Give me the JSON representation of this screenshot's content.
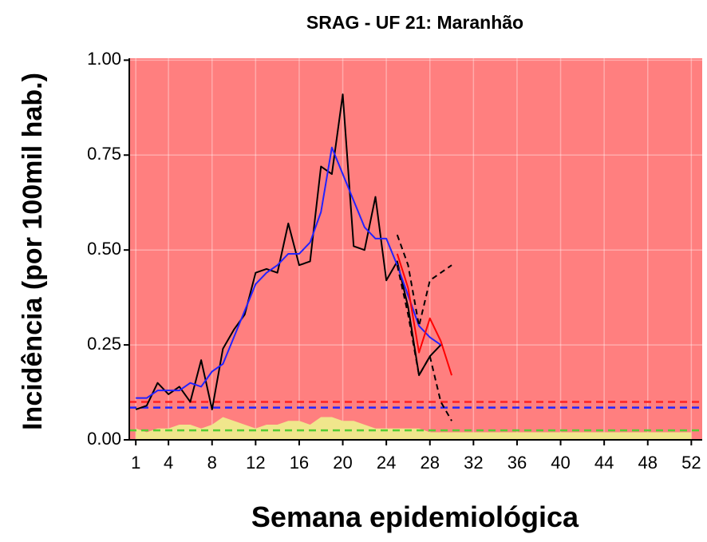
{
  "chart_data": {
    "type": "line",
    "title": "SRAG - UF 21: Maranhão",
    "x_label": "Semana epidemiológica",
    "y_label": "Incidência (por 100mil hab.)",
    "background": "#ff7f7f",
    "grid": true,
    "xlim": [
      0.4,
      53
    ],
    "ylim": [
      0,
      1.005
    ],
    "xticks": [
      1,
      4,
      8,
      12,
      16,
      20,
      24,
      28,
      32,
      36,
      40,
      44,
      48,
      52
    ],
    "yticks": [
      {
        "value": 0,
        "label": "0.00"
      },
      {
        "value": 0.25,
        "label": "0.25"
      },
      {
        "value": 0.5,
        "label": "0.50"
      },
      {
        "value": 0.75,
        "label": "0.75"
      },
      {
        "value": 1,
        "label": "1.00"
      }
    ],
    "areas": [
      {
        "color": "#f0e68c",
        "x": [
          1,
          2,
          3,
          4,
          5,
          6,
          7,
          8,
          9,
          10,
          11,
          12,
          13,
          14,
          15,
          16,
          17,
          18,
          19,
          20,
          21,
          22,
          23,
          24,
          25,
          26,
          27,
          28,
          29,
          30,
          31,
          32,
          33,
          34,
          35,
          36,
          37,
          38,
          39,
          40,
          41,
          42,
          43,
          44,
          45,
          46,
          47,
          48,
          49,
          50,
          51,
          52
        ],
        "values": [
          0.03,
          0.02,
          0.03,
          0.03,
          0.04,
          0.04,
          0.03,
          0.04,
          0.06,
          0.05,
          0.04,
          0.03,
          0.04,
          0.04,
          0.05,
          0.05,
          0.04,
          0.06,
          0.06,
          0.05,
          0.05,
          0.04,
          0.03,
          0.03,
          0.03,
          0.03,
          0.03,
          0.02,
          0.02,
          0.02,
          0.02,
          0.02,
          0.02,
          0.02,
          0.02,
          0.02,
          0.02,
          0.02,
          0.02,
          0.02,
          0.02,
          0.02,
          0.02,
          0.02,
          0.02,
          0.02,
          0.02,
          0.02,
          0.02,
          0.02,
          0.02,
          0.02
        ]
      }
    ],
    "hlines": [
      {
        "value": 0.1,
        "color": "#ff2222"
      },
      {
        "value": 0.085,
        "color": "#2222ff"
      },
      {
        "value": 0.025,
        "color": "#55cc33"
      }
    ],
    "series": [
      {
        "color": "#000000",
        "dash": false,
        "x": [
          1,
          2,
          3,
          4,
          5,
          6,
          7,
          8,
          9,
          10,
          11,
          12,
          13,
          14,
          15,
          16,
          17,
          18,
          19,
          20,
          21,
          22,
          23,
          24,
          25,
          26,
          27,
          28,
          29
        ],
        "values": [
          0.08,
          0.09,
          0.15,
          0.12,
          0.14,
          0.1,
          0.21,
          0.08,
          0.24,
          0.29,
          0.33,
          0.44,
          0.45,
          0.44,
          0.57,
          0.46,
          0.47,
          0.72,
          0.7,
          0.91,
          0.51,
          0.5,
          0.64,
          0.42,
          0.47,
          0.35,
          0.17,
          0.22,
          0.25
        ]
      },
      {
        "color": "#2222ff",
        "dash": false,
        "x": [
          1,
          2,
          3,
          4,
          5,
          6,
          7,
          8,
          9,
          10,
          11,
          12,
          13,
          14,
          15,
          16,
          17,
          18,
          19,
          20,
          21,
          22,
          23,
          24,
          25,
          26,
          27,
          28,
          29
        ],
        "values": [
          0.11,
          0.11,
          0.13,
          0.13,
          0.13,
          0.15,
          0.14,
          0.18,
          0.2,
          0.27,
          0.34,
          0.41,
          0.44,
          0.46,
          0.49,
          0.49,
          0.52,
          0.6,
          0.77,
          0.7,
          0.63,
          0.56,
          0.53,
          0.53,
          0.46,
          0.38,
          0.3,
          0.27,
          0.25
        ]
      },
      {
        "color": "#ff0000",
        "dash": false,
        "x": [
          25,
          26,
          27,
          28,
          29,
          30
        ],
        "values": [
          0.49,
          0.4,
          0.23,
          0.32,
          0.26,
          0.17
        ]
      },
      {
        "color": "#000000",
        "dash": true,
        "x": [
          25,
          26,
          27,
          28,
          29,
          30
        ],
        "values": [
          0.54,
          0.46,
          0.3,
          0.42,
          0.44,
          0.46
        ]
      },
      {
        "color": "#000000",
        "dash": true,
        "x": [
          25,
          26,
          27,
          28,
          29,
          30
        ],
        "values": [
          0.46,
          0.33,
          0.17,
          0.22,
          0.1,
          0.05
        ]
      }
    ]
  }
}
